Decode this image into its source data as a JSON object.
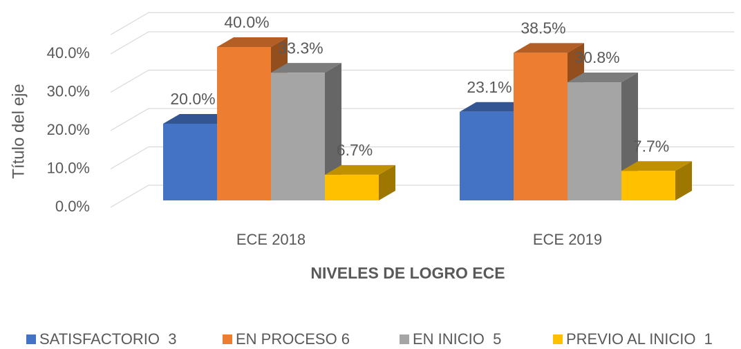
{
  "chart_data": {
    "type": "bar",
    "x_axis_label": "NIVELES DE LOGRO ECE",
    "y_axis_label": "Título del eje",
    "categories": [
      "ECE 2018",
      "ECE 2019"
    ],
    "series": [
      {
        "name": "SATISFACTORIO  3",
        "color": "#4472c4",
        "values": [
          20.0,
          23.1
        ],
        "value_labels": [
          "20.0%",
          "23.1%"
        ]
      },
      {
        "name": "EN PROCESO 6",
        "color": "#ed7d31",
        "values": [
          40.0,
          38.5
        ],
        "value_labels": [
          "40.0%",
          "38.5%"
        ]
      },
      {
        "name": "EN INICIO  5",
        "color": "#a5a5a5",
        "values": [
          33.3,
          30.8
        ],
        "value_labels": [
          "33.3%",
          "30.8%"
        ]
      },
      {
        "name": "PREVIO AL INICIO  1",
        "color": "#ffc000",
        "values": [
          6.7,
          7.7
        ],
        "value_labels": [
          "6.7%",
          "7.7%"
        ]
      }
    ],
    "ylim": [
      0,
      45
    ],
    "yticks": [
      {
        "value": 0,
        "label": "0.0%"
      },
      {
        "value": 10,
        "label": "10.0%"
      },
      {
        "value": 20,
        "label": "20.0%"
      },
      {
        "value": 30,
        "label": "30.0%"
      },
      {
        "value": 40,
        "label": "40.0%"
      }
    ],
    "grid": true,
    "legend": "bottom"
  }
}
